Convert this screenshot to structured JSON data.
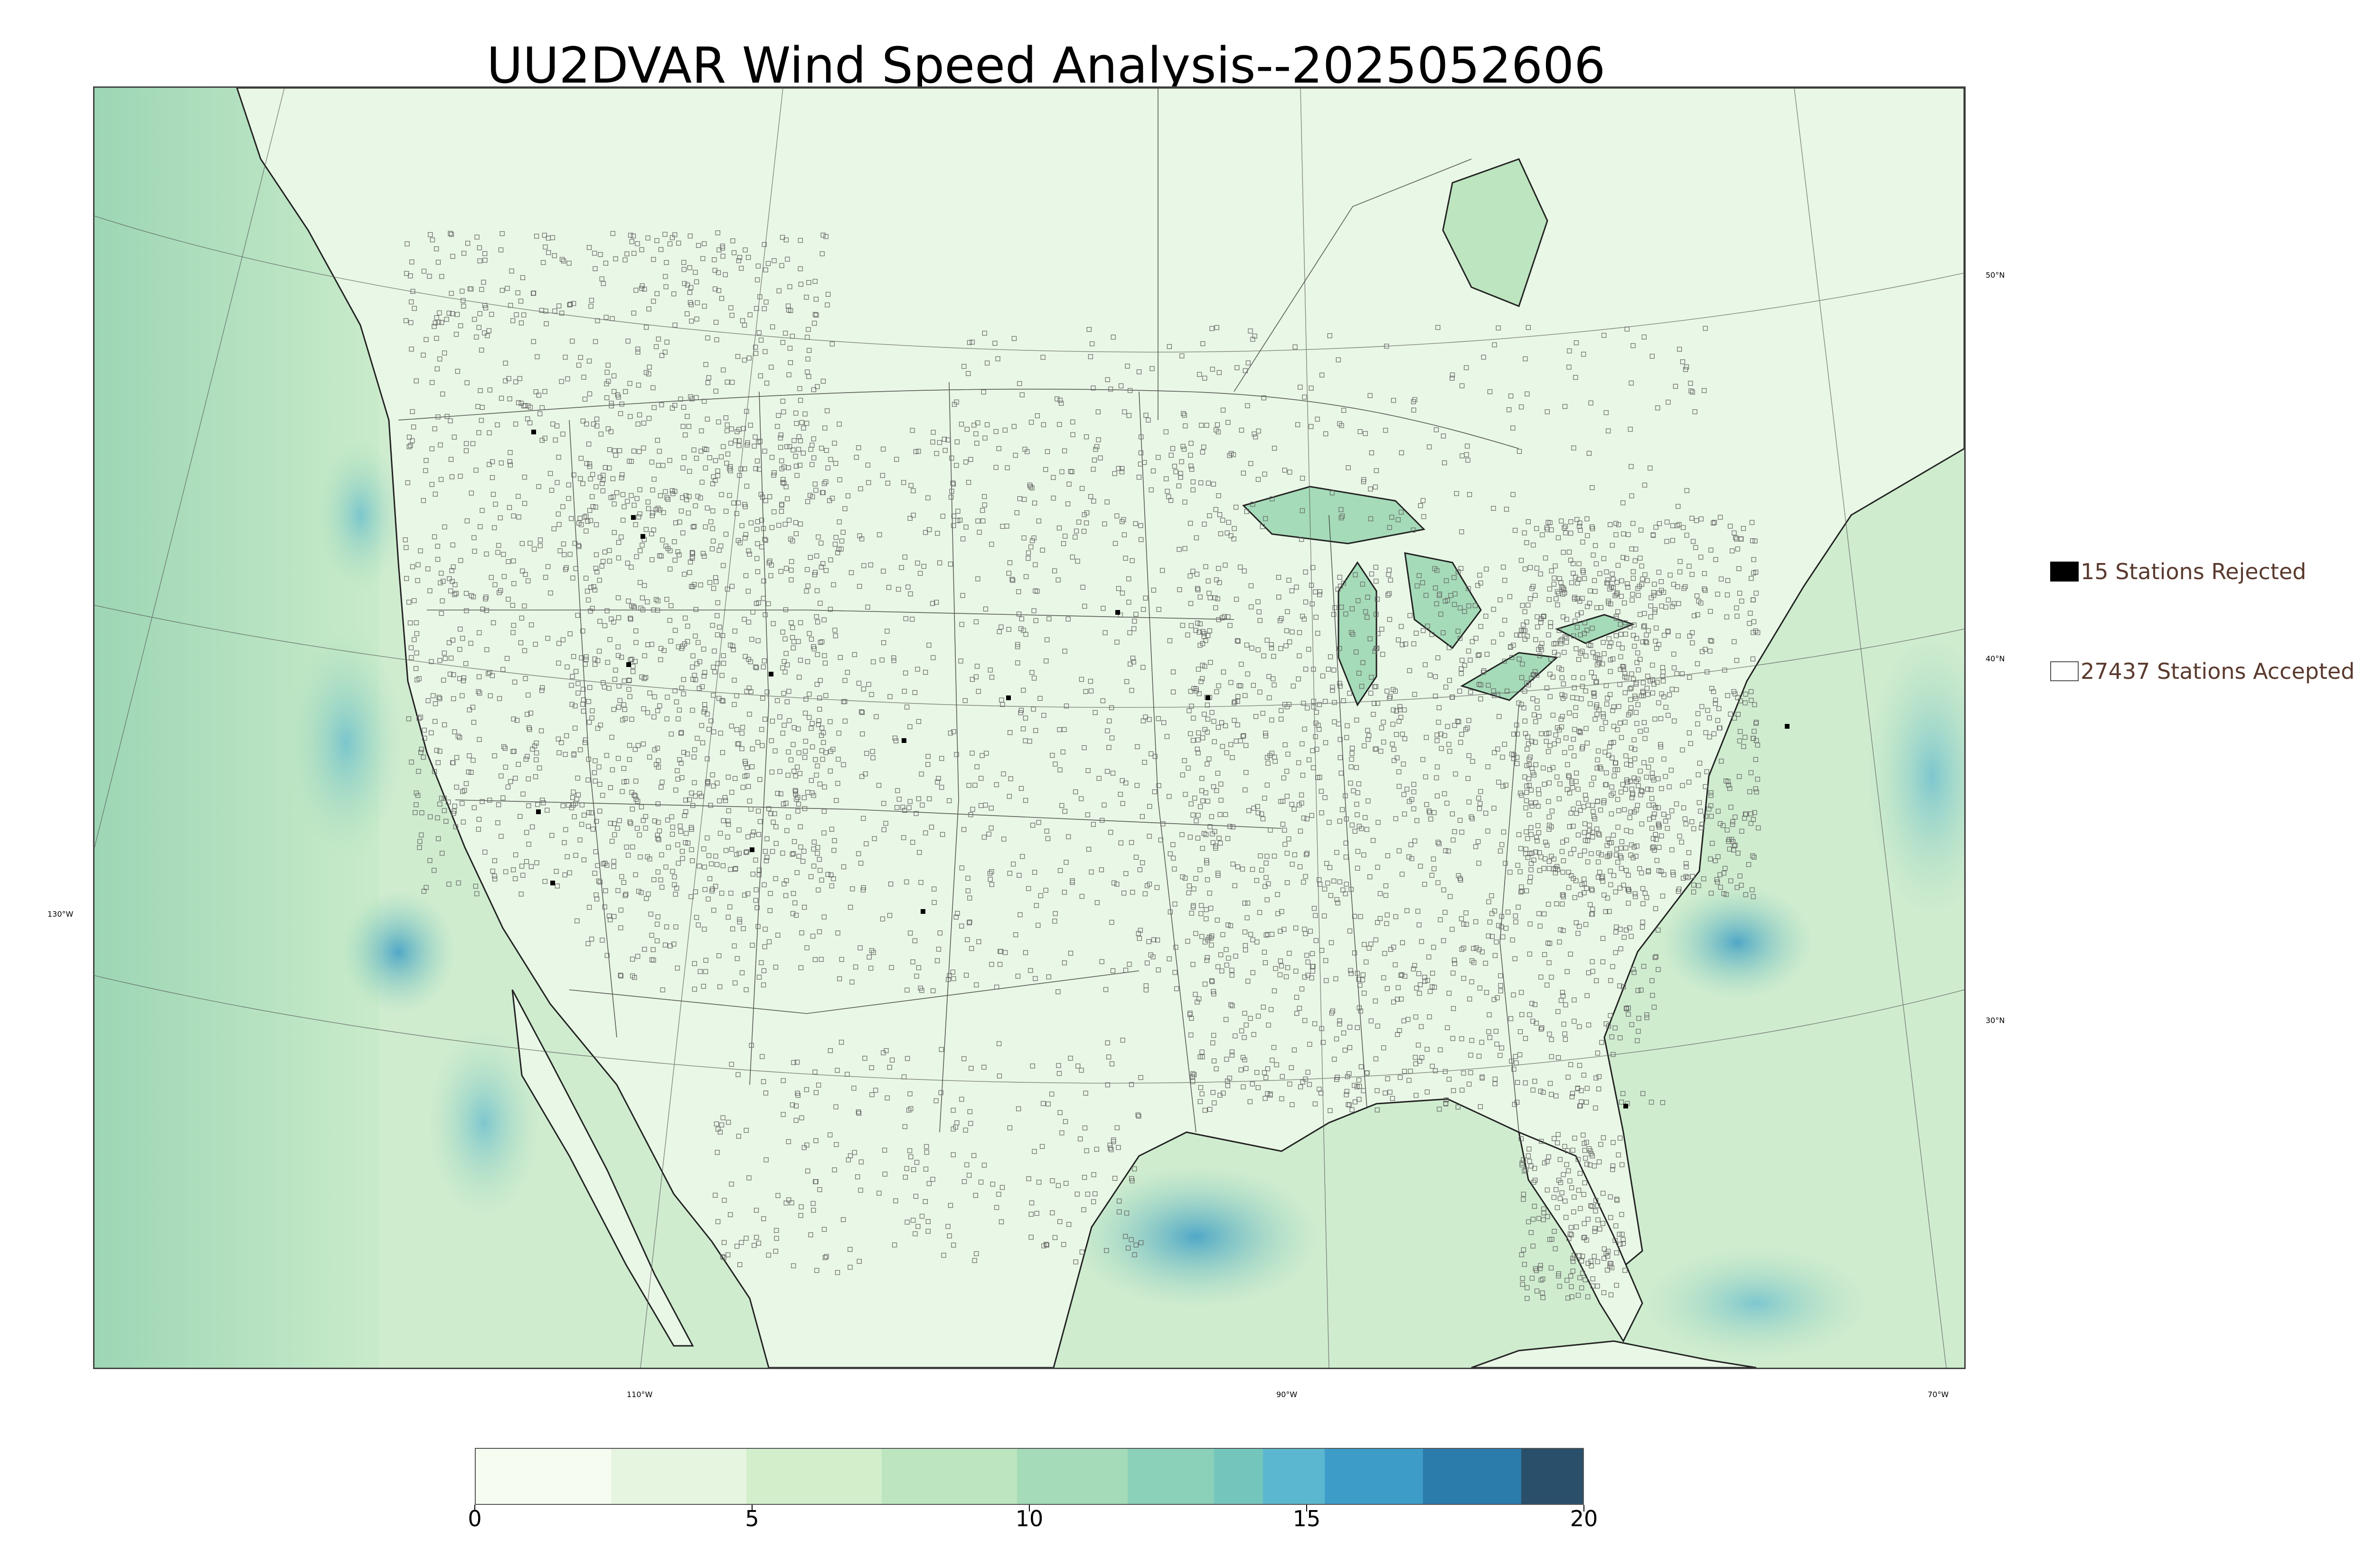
{
  "title": "UU2DVAR Wind Speed Analysis--2025052606",
  "map": {
    "latitude_labels": [
      "50°N",
      "40°N",
      "30°N"
    ],
    "longitude_labels": [
      "130°W",
      "110°W",
      "90°W",
      "70°W"
    ],
    "background_color": "#cfeccf",
    "land_color": "#e9f7e6",
    "high_wind_color": "#3a9cc6"
  },
  "legend": {
    "rejected_label": "15 Stations Rejected",
    "accepted_label": "27437 Stations Accepted",
    "rejected_color": "#000000",
    "accepted_color": "#ffffff"
  },
  "colorbar": {
    "min": 0,
    "max": 20,
    "tick_labels": [
      "0",
      "5",
      "10",
      "15",
      "20"
    ],
    "colors": [
      "#f7fcf0",
      "#e6f5e0",
      "#d2eecb",
      "#bde5bf",
      "#a5dbb8",
      "#8bd0b9",
      "#74c6bd",
      "#5bb7cf",
      "#3d9cc8",
      "#2b7bab",
      "#2a4f6b"
    ]
  }
}
